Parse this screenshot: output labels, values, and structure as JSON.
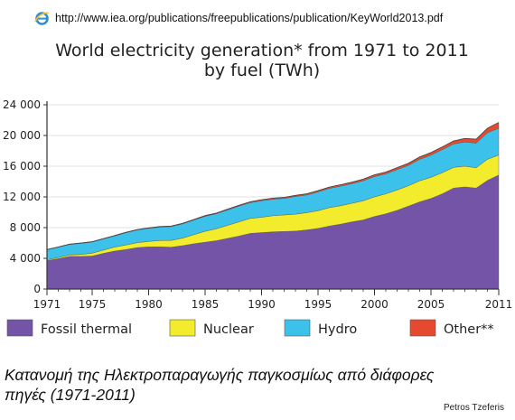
{
  "browser": {
    "url": "http://www.iea.org/publications/freepublications/publication/KeyWorld2013.pdf",
    "icon": "ie-icon"
  },
  "caption": "Κατανομή της Ηλεκτροπαραγωγής παγκοσμίως από διάφορες πηγές (1971-2011)",
  "credit": "Petros Tzeferis",
  "colors": {
    "fossil": "#7454a6",
    "nuclear": "#f2ec2c",
    "hydro": "#3cc2ea",
    "other": "#e64a2e"
  },
  "chart_data": {
    "type": "area",
    "stacked": true,
    "title_line1": "World electricity generation* from 1971 to 2011",
    "title_line2": "by fuel (TWh)",
    "x": [
      1971,
      1972,
      1973,
      1974,
      1975,
      1976,
      1977,
      1978,
      1979,
      1980,
      1981,
      1982,
      1983,
      1984,
      1985,
      1986,
      1987,
      1988,
      1989,
      1990,
      1991,
      1992,
      1993,
      1994,
      1995,
      1996,
      1997,
      1998,
      1999,
      2000,
      2001,
      2002,
      2003,
      2004,
      2005,
      2006,
      2007,
      2008,
      2009,
      2010,
      2011
    ],
    "xticks": [
      "1971",
      "1975",
      "1980",
      "1985",
      "1990",
      "1995",
      "2000",
      "2005",
      "2011"
    ],
    "xtick_values": [
      1971,
      1975,
      1980,
      1985,
      1990,
      1995,
      2000,
      2005,
      2011
    ],
    "ylim": [
      0,
      24000
    ],
    "yticks": [
      "0",
      "4 000",
      "8 000",
      "12 000",
      "16 000",
      "20 000",
      "24 000"
    ],
    "ytick_values": [
      0,
      4000,
      8000,
      12000,
      16000,
      20000,
      24000
    ],
    "grid": true,
    "legend_position": "bottom",
    "series": [
      {
        "name": "Fossil thermal",
        "color_key": "fossil",
        "values": [
          3700,
          3950,
          4250,
          4250,
          4300,
          4650,
          4950,
          5150,
          5400,
          5500,
          5500,
          5450,
          5650,
          5900,
          6100,
          6300,
          6600,
          6900,
          7250,
          7350,
          7450,
          7500,
          7550,
          7700,
          7900,
          8200,
          8450,
          8750,
          9000,
          9450,
          9800,
          10250,
          10800,
          11350,
          11800,
          12400,
          13150,
          13300,
          13150,
          14150,
          14850
        ]
      },
      {
        "name": "Nuclear",
        "color_key": "nuclear",
        "values": [
          110,
          150,
          200,
          250,
          370,
          420,
          520,
          590,
          640,
          700,
          820,
          880,
          980,
          1180,
          1420,
          1550,
          1700,
          1850,
          1950,
          2000,
          2100,
          2150,
          2200,
          2250,
          2300,
          2400,
          2400,
          2420,
          2500,
          2550,
          2600,
          2650,
          2650,
          2750,
          2750,
          2750,
          2700,
          2700,
          2650,
          2750,
          2600
        ]
      },
      {
        "name": "Hydro",
        "color_key": "hydro",
        "values": [
          1300,
          1350,
          1350,
          1450,
          1450,
          1450,
          1450,
          1600,
          1650,
          1700,
          1750,
          1800,
          1850,
          1900,
          1950,
          1950,
          2000,
          2050,
          2050,
          2150,
          2150,
          2150,
          2300,
          2300,
          2450,
          2500,
          2550,
          2550,
          2600,
          2650,
          2600,
          2650,
          2650,
          2800,
          2900,
          3000,
          3050,
          3150,
          3200,
          3450,
          3500
        ]
      },
      {
        "name": "Other**",
        "color_key": "other",
        "values": [
          40,
          40,
          45,
          45,
          50,
          50,
          55,
          60,
          60,
          65,
          70,
          75,
          80,
          85,
          95,
          100,
          110,
          115,
          120,
          130,
          135,
          140,
          150,
          160,
          170,
          180,
          190,
          200,
          210,
          230,
          240,
          260,
          280,
          310,
          330,
          360,
          400,
          460,
          520,
          600,
          750
        ]
      }
    ]
  }
}
